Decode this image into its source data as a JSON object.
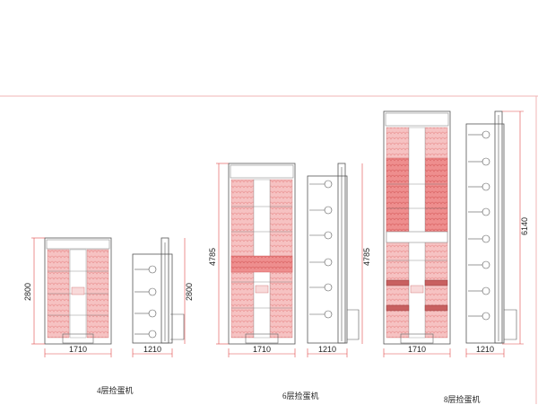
{
  "colors": {
    "frame": "#555555",
    "tray": "#f2a0a0",
    "tray_strong": "#ec7676",
    "dim_line": "#e04848",
    "border": "#f0b4b4"
  },
  "machines": [
    {
      "caption": "4层捡蛋机",
      "front_height_label": "2800",
      "front_width_label": "1710",
      "side_height_label": "2800",
      "side_width_label": "1210",
      "tiers": 4
    },
    {
      "caption": "6层捡蛋机",
      "front_height_label": "4785",
      "front_width_label": "1710",
      "side_height_label": "4785",
      "side_width_label": "1210",
      "tiers": 6
    },
    {
      "caption": "8层捡蛋机",
      "front_width_label": "1710",
      "side_height_label": "6140",
      "side_width_label": "1210",
      "tiers": 8
    }
  ]
}
